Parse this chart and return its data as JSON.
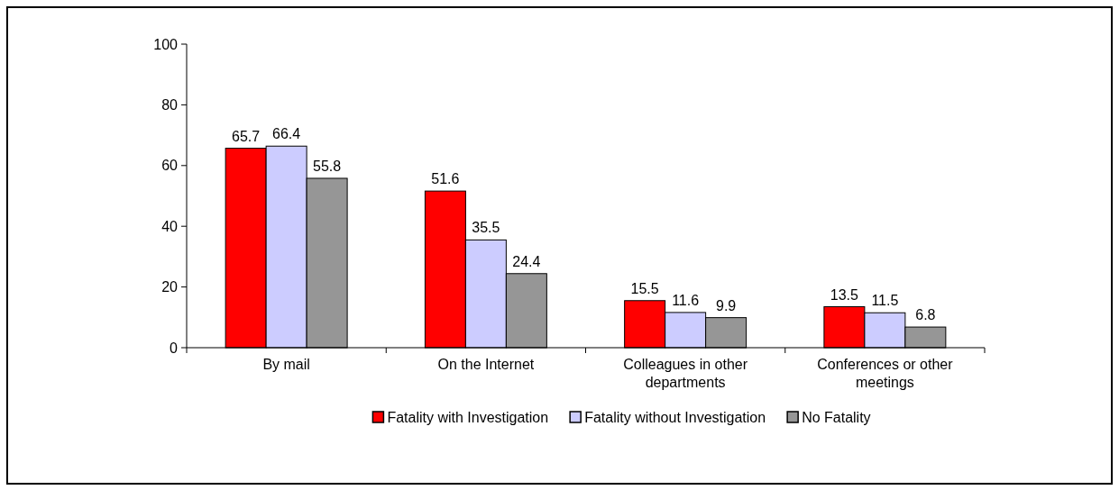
{
  "chart_data": {
    "type": "bar",
    "categories": [
      "By mail",
      "On the Internet",
      "Colleagues in other departments",
      "Conferences or other meetings"
    ],
    "series": [
      {
        "name": "Fatality with Investigation",
        "color": "#ff0000",
        "values": [
          65.7,
          51.6,
          15.5,
          13.5
        ]
      },
      {
        "name": "Fatality without Investigation",
        "color": "#ccccff",
        "values": [
          66.4,
          35.5,
          11.6,
          11.5
        ]
      },
      {
        "name": "No Fatality",
        "color": "#969696",
        "values": [
          55.8,
          24.4,
          9.9,
          6.8
        ]
      }
    ],
    "ylim": [
      0,
      100
    ],
    "yticks": [
      0,
      20,
      40,
      60,
      80,
      100
    ],
    "data_labels": true,
    "legend": "bottom",
    "grid": false
  }
}
